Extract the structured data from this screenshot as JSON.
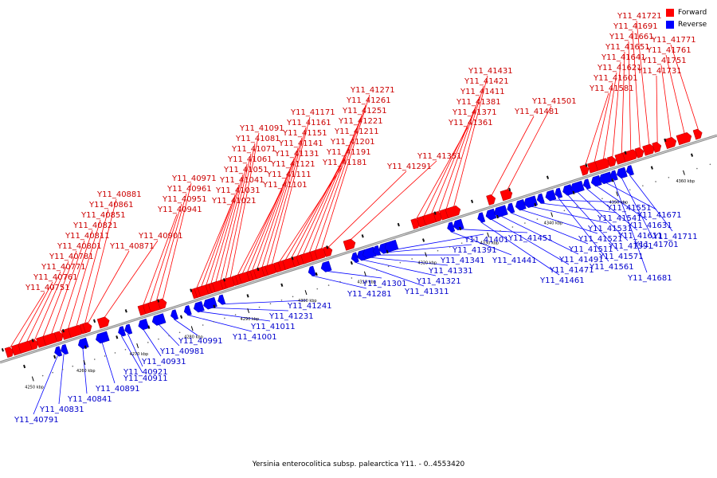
{
  "title": "Yersinia enterocolitica subsp. palearctica Y11. - 0..4553420",
  "legend": [
    {
      "label": "Forward",
      "color": "#ff0000"
    },
    {
      "label": "Reverse",
      "color": "#0000ff"
    }
  ],
  "colors": {
    "forward": "#ff0000",
    "reverse": "#0000ff",
    "forward_text": "#cc0000",
    "reverse_text": "#0000cc",
    "backbone": "#8a8a8a"
  },
  "scale": {
    "range_kbp": [
      4245,
      4366
    ],
    "ticks": [
      {
        "label": "4250 kbp",
        "kbp": 4250
      },
      {
        "label": "4260 kbp",
        "kbp": 4260
      },
      {
        "label": "4270 kbp",
        "kbp": 4270
      },
      {
        "label": "4280 kbp",
        "kbp": 4280
      },
      {
        "label": "4290 kbp",
        "kbp": 4290
      },
      {
        "label": "4300 kbp",
        "kbp": 4300
      },
      {
        "label": "4310 kbp",
        "kbp": 4310
      },
      {
        "label": "4320 kbp",
        "kbp": 4320
      },
      {
        "label": "4330 kbp",
        "kbp": 4330
      },
      {
        "label": "4340 kbp",
        "kbp": 4340
      },
      {
        "label": "4350 kbp",
        "kbp": 4350
      },
      {
        "label": "4360 kbp",
        "kbp": 4360
      }
    ]
  },
  "forward_genes": [
    "Y11_40751",
    "Y11_40761",
    "Y11_40771",
    "Y11_40781",
    "Y11_40801",
    "Y11_40811",
    "Y11_40821",
    "Y11_40851",
    "Y11_40861",
    "Y11_40881",
    "Y11_40871",
    "Y11_40901",
    "Y11_40941",
    "Y11_40951",
    "Y11_40961",
    "Y11_40971",
    "Y11_41021",
    "Y11_41031",
    "Y11_41041",
    "Y11_41051",
    "Y11_41061",
    "Y11_41071",
    "Y11_41081",
    "Y11_41091",
    "Y11_41101",
    "Y11_41111",
    "Y11_41121",
    "Y11_41131",
    "Y11_41141",
    "Y11_41151",
    "Y11_41161",
    "Y11_41171",
    "Y11_41181",
    "Y11_41191",
    "Y11_41201",
    "Y11_41211",
    "Y11_41221",
    "Y11_41251",
    "Y11_41261",
    "Y11_41271",
    "Y11_41291",
    "Y11_41351",
    "Y11_41361",
    "Y11_41371",
    "Y11_41381",
    "Y11_41411",
    "Y11_41421",
    "Y11_41431",
    "Y11_41481",
    "Y11_41501",
    "Y11_41581",
    "Y11_41601",
    "Y11_41621",
    "Y11_41641",
    "Y11_41651",
    "Y11_41661",
    "Y11_41691",
    "Y11_41721",
    "Y11_41731",
    "Y11_41751",
    "Y11_41761",
    "Y11_41771"
  ],
  "reverse_genes": [
    "Y11_40791",
    "Y11_40831",
    "Y11_40841",
    "Y11_40891",
    "Y11_40911",
    "Y11_40921",
    "Y11_40931",
    "Y11_40981",
    "Y11_40991",
    "Y11_41001",
    "Y11_41011",
    "Y11_41231",
    "Y11_41241",
    "Y11_41281",
    "Y11_41301",
    "Y11_41311",
    "Y11_41321",
    "Y11_41331",
    "Y11_41341",
    "Y11_41391",
    "Y11_41401",
    "Y11_41441",
    "Y11_41451",
    "Y11_41461",
    "Y11_41471",
    "Y11_41491",
    "Y11_41511",
    "Y11_41521",
    "Y11_41531",
    "Y11_41541",
    "Y11_41551",
    "Y11_41561",
    "Y11_41571",
    "Y11_41591",
    "Y11_41611",
    "Y11_41631",
    "Y11_41671",
    "Y11_41681",
    "Y11_41701",
    "Y11_41711"
  ]
}
